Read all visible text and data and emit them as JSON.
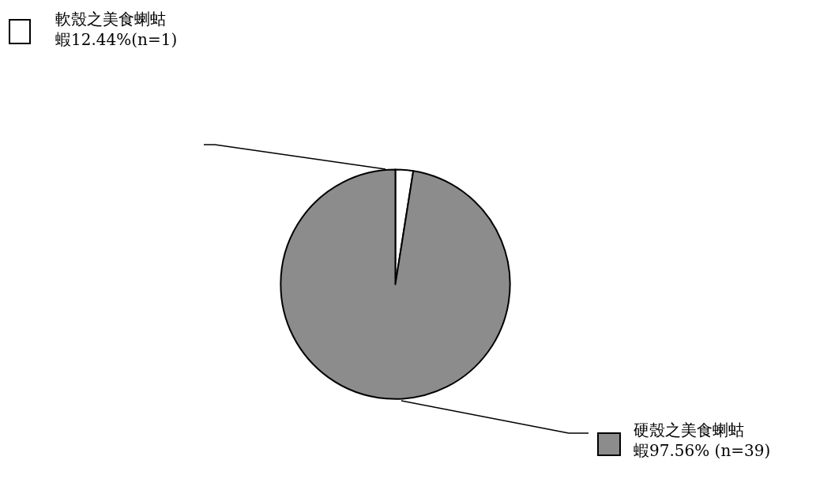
{
  "chart_data": {
    "type": "pie",
    "categories": [
      "軟殼之美食蝲蛄蝦",
      "硬殼之美食蝲蛄蝦"
    ],
    "values": [
      1,
      39
    ],
    "value_labels": [
      "12.44%(n=1)",
      "97.56% (n=39)"
    ],
    "colors": [
      "#ffffff",
      "#8c8c8c"
    ],
    "legend": "top left"
  }
}
